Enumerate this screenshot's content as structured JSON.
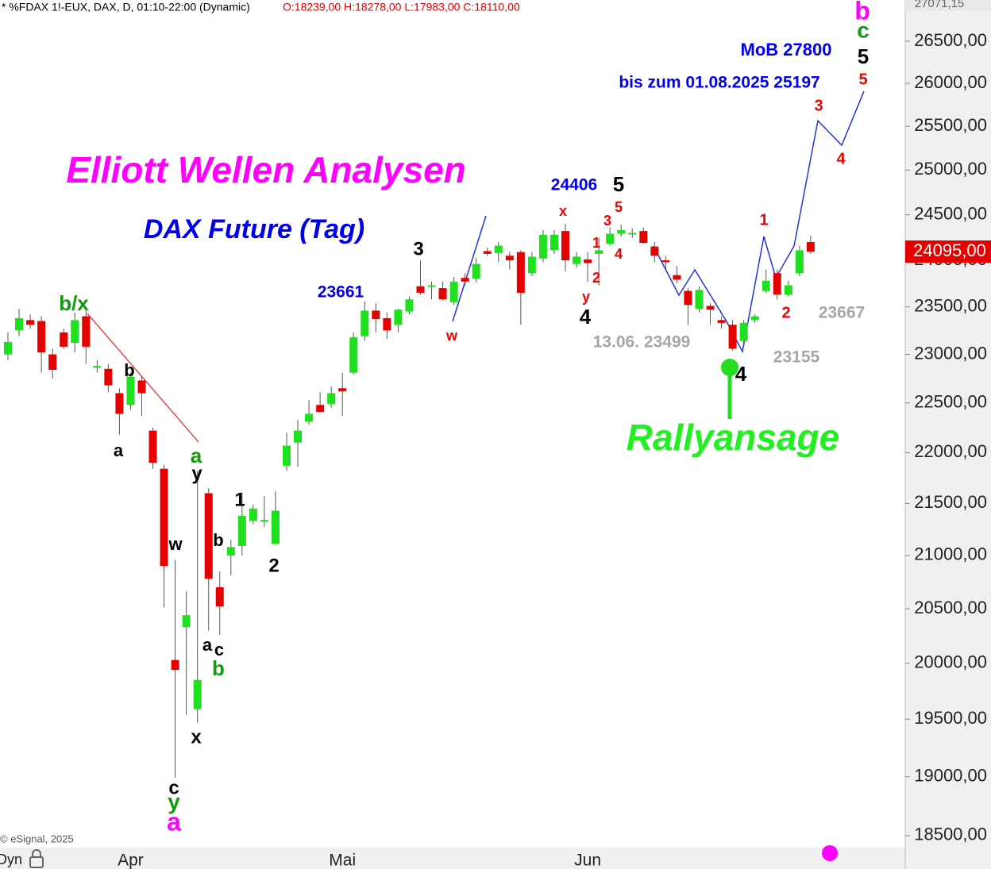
{
  "chart_data": {
    "type": "candlestick",
    "header": "* %FDAX 1!-EUX, DAX, D, 01:10-22:00 (Dynamic)",
    "ohlc_text": "O:18239,00 H:18278,00 L:17983,00 C:18110,00",
    "copyright": "© eSignal, 2025",
    "mode_label": "Dyn",
    "top_label": "27071,15",
    "log": true,
    "up_color": "#1fe01f",
    "down_color": "#e60000",
    "categories": [
      null,
      null,
      null,
      null,
      null,
      null,
      null,
      null,
      null,
      null,
      null,
      "Apr",
      null,
      null,
      null,
      null,
      null,
      null,
      null,
      null,
      null,
      null,
      null,
      null,
      null,
      null,
      null,
      null,
      null,
      null,
      "Mai",
      null,
      null,
      null,
      null,
      null,
      null,
      null,
      null,
      null,
      null,
      null,
      null,
      null,
      null,
      null,
      null,
      null,
      null,
      null,
      null,
      null,
      "Jun",
      null,
      null,
      null,
      null,
      null,
      null,
      null,
      null,
      null,
      null,
      null,
      null,
      null,
      null,
      null,
      null,
      null,
      null,
      null,
      null
    ],
    "open": [
      23000,
      23250,
      23360,
      23350,
      23000,
      23230,
      23120,
      23400,
      22870,
      22850,
      22600,
      22480,
      22730,
      22220,
      21840,
      20030,
      20330,
      19590,
      21600,
      20700,
      21000,
      21090,
      21330,
      21330,
      21110,
      21870,
      22100,
      22310,
      22480,
      22490,
      22650,
      22810,
      23190,
      23460,
      23380,
      23310,
      23450,
      23720,
      23720,
      23700,
      23550,
      23810,
      23800,
      24100,
      24080,
      24050,
      24090,
      23860,
      24020,
      24110,
      24320,
      23960,
      24010,
      24070,
      24180,
      24290,
      24290,
      24320,
      24150,
      24000,
      23840,
      23670,
      23480,
      23510,
      23360,
      23310,
      23140,
      23360,
      23670,
      23860,
      23630,
      23860,
      24200
    ],
    "high": [
      23230,
      23480,
      23420,
      23400,
      23060,
      23270,
      23440,
      23460,
      22940,
      22900,
      22650,
      22810,
      22770,
      22250,
      21880,
      20960,
      20660,
      21820,
      21650,
      20850,
      21150,
      21610,
      21490,
      21570,
      21620,
      22200,
      22330,
      22530,
      22610,
      22670,
      22810,
      23230,
      23560,
      23540,
      23440,
      23480,
      23610,
      24000,
      23770,
      23770,
      23820,
      23860,
      24030,
      24140,
      24200,
      24090,
      24110,
      24090,
      24330,
      24330,
      24400,
      24090,
      24090,
      24250,
      24360,
      24390,
      24350,
      24360,
      24200,
      24050,
      23940,
      23700,
      23720,
      23540,
      23400,
      23360,
      23360,
      23420,
      23900,
      23900,
      23780,
      24160,
      24270
    ],
    "low": [
      22940,
      23190,
      23270,
      22810,
      22750,
      23060,
      23020,
      22900,
      22810,
      22610,
      22180,
      22430,
      22370,
      21840,
      20510,
      18990,
      19540,
      19470,
      20300,
      20260,
      20810,
      21000,
      21300,
      21270,
      21100,
      21820,
      21860,
      22280,
      22400,
      22450,
      22370,
      22790,
      23140,
      23230,
      23160,
      23230,
      23420,
      23630,
      23580,
      23570,
      23520,
      23730,
      23760,
      24050,
      23980,
      23900,
      23310,
      23830,
      23980,
      24070,
      23880,
      23920,
      23770,
      23730,
      24160,
      24260,
      24250,
      24180,
      23980,
      23900,
      23750,
      23310,
      23440,
      23310,
      23270,
      23040,
      23120,
      23330,
      23650,
      23580,
      23610,
      23830,
      24070
    ],
    "close": [
      23130,
      23380,
      23310,
      23020,
      22840,
      23080,
      23360,
      23080,
      22880,
      22680,
      22390,
      22770,
      22600,
      21900,
      20900,
      19940,
      20440,
      19850,
      20780,
      20520,
      21080,
      21380,
      21450,
      21340,
      21430,
      22070,
      22220,
      22390,
      22410,
      22600,
      22620,
      23180,
      23460,
      23370,
      23250,
      23470,
      23580,
      23650,
      23730,
      23580,
      23770,
      23770,
      23960,
      24070,
      24160,
      24000,
      23650,
      24040,
      24280,
      24280,
      24000,
      24040,
      23970,
      24110,
      24290,
      24330,
      24300,
      24190,
      24050,
      23980,
      23790,
      23520,
      23680,
      23470,
      23330,
      23060,
      23330,
      23400,
      23780,
      23630,
      23730,
      24110,
      24095
    ],
    "last_price": {
      "value": 24095,
      "label": "24095,00"
    },
    "ylim": [
      18400,
      27000
    ],
    "yticks": [
      {
        "value": 18500,
        "label": "18500,00"
      },
      {
        "value": 19000,
        "label": "19000,00"
      },
      {
        "value": 19500,
        "label": "19500,00"
      },
      {
        "value": 20000,
        "label": "20000,00"
      },
      {
        "value": 20500,
        "label": "20500,00"
      },
      {
        "value": 21000,
        "label": "21000,00"
      },
      {
        "value": 21500,
        "label": "21500,00"
      },
      {
        "value": 22000,
        "label": "22000,00"
      },
      {
        "value": 22500,
        "label": "22500,00"
      },
      {
        "value": 23000,
        "label": "23000,00"
      },
      {
        "value": 23500,
        "label": "23500,00"
      },
      {
        "value": 24000,
        "label": "24000,00"
      },
      {
        "value": 24500,
        "label": "24500,00"
      },
      {
        "value": 25000,
        "label": "25000,00"
      },
      {
        "value": 25500,
        "label": "25500,00"
      },
      {
        "value": 26000,
        "label": "26000,00"
      },
      {
        "value": 26500,
        "label": "26500,00"
      }
    ],
    "annotations": [
      {
        "text": "Elliott Wellen Analysen",
        "color": "#ff00ff"
      },
      {
        "text": "DAX Future (Tag)",
        "color": "#0000ee"
      },
      {
        "text": "Rallyansage",
        "color": "#22ee22"
      },
      {
        "text": "MoB 27800",
        "color": "#0000ee"
      },
      {
        "text": "bis zum 01.08.2025 25197",
        "color": "#0000ee"
      },
      {
        "text": "24406",
        "color": "#0000ee"
      },
      {
        "text": "5",
        "color": "#000000"
      },
      {
        "text": "23661",
        "color": "#0000ee"
      },
      {
        "text": "13.06. 23499",
        "color": "#a6a6a6"
      },
      {
        "text": "23667",
        "color": "#a6a6a6"
      },
      {
        "text": "23155",
        "color": "#a6a6a6"
      },
      {
        "text": "b",
        "color": "#ff00ff"
      },
      {
        "text": "c",
        "color": "#119911"
      },
      {
        "text": "5",
        "color": "#000000"
      },
      {
        "text": "5",
        "color": "#ee0000"
      },
      {
        "text": "3",
        "color": "#ee0000"
      },
      {
        "text": "4",
        "color": "#ee0000"
      },
      {
        "text": "1",
        "color": "#ee0000"
      },
      {
        "text": "2",
        "color": "#ee0000"
      },
      {
        "text": "4",
        "color": "#000000"
      },
      {
        "text": "x",
        "color": "#ee0000"
      },
      {
        "text": "5",
        "color": "#ee0000"
      },
      {
        "text": "3",
        "color": "#ee0000"
      },
      {
        "text": "1",
        "color": "#ee0000"
      },
      {
        "text": "4",
        "color": "#ee0000"
      },
      {
        "text": "2",
        "color": "#ee0000"
      },
      {
        "text": "y",
        "color": "#ee0000"
      },
      {
        "text": "4",
        "color": "#000000"
      },
      {
        "text": "w",
        "color": "#ee0000"
      },
      {
        "text": "3",
        "color": "#000000"
      },
      {
        "text": "b/x",
        "color": "#119911"
      },
      {
        "text": "b",
        "color": "#000000"
      },
      {
        "text": "a",
        "color": "#000000"
      },
      {
        "text": "a",
        "color": "#119911"
      },
      {
        "text": "y",
        "color": "#000000"
      },
      {
        "text": "w",
        "color": "#000000"
      },
      {
        "text": "1",
        "color": "#000000"
      },
      {
        "text": "b",
        "color": "#000000"
      },
      {
        "text": "2",
        "color": "#000000"
      },
      {
        "text": "a",
        "color": "#000000"
      },
      {
        "text": "c",
        "color": "#000000"
      },
      {
        "text": "b",
        "color": "#119911"
      },
      {
        "text": "x",
        "color": "#000000"
      },
      {
        "text": "c",
        "color": "#000000"
      },
      {
        "text": "y",
        "color": "#119911"
      },
      {
        "text": "a",
        "color": "#ff00ff"
      }
    ]
  }
}
